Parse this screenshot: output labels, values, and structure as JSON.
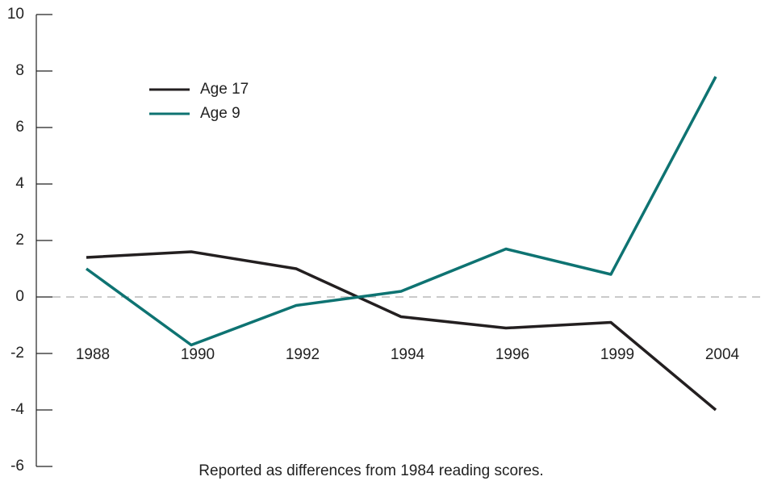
{
  "chart_data": {
    "type": "line",
    "categories": [
      "1988",
      "1990",
      "1992",
      "1994",
      "1996",
      "1999",
      "2004"
    ],
    "series": [
      {
        "name": "Age 17",
        "color": "#231f20",
        "values": [
          1.4,
          1.6,
          1.0,
          -0.7,
          -1.1,
          -0.9,
          -4.0
        ]
      },
      {
        "name": "Age 9",
        "color": "#0e7372",
        "values": [
          1.0,
          -1.7,
          -0.3,
          0.2,
          1.7,
          0.8,
          7.8
        ]
      }
    ],
    "ylim": [
      -6,
      10
    ],
    "yticks": [
      -6,
      -4,
      -2,
      0,
      2,
      4,
      6,
      8,
      10
    ],
    "annotation": "Reported as differences from 1984 reading scores.",
    "legend": "upper-left"
  }
}
